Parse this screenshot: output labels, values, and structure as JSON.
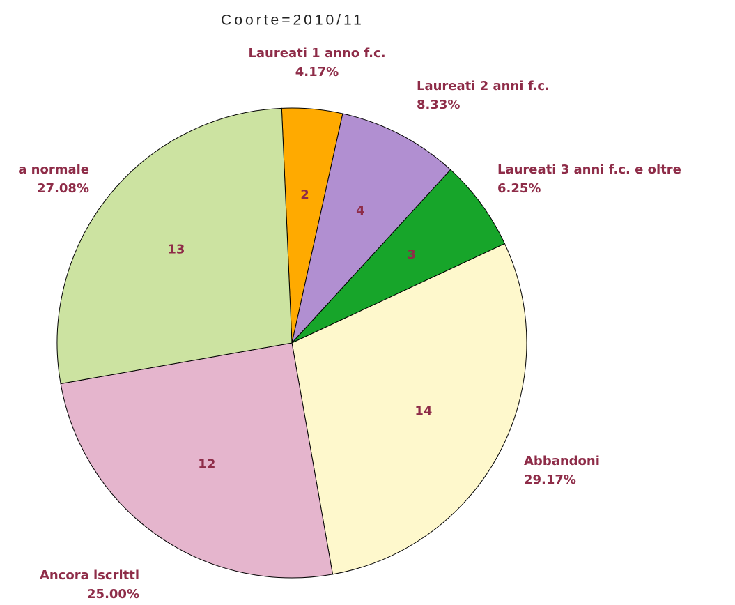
{
  "chart_data": {
    "type": "pie",
    "title": "Coorte=2010/11",
    "categories": [
      "Laureati 1 anno f.c.",
      "Laureati 2 anni f.c.",
      "Laureati 3 anni f.c. e oltre",
      "Abbandoni",
      "Ancora iscritti",
      "a normale"
    ],
    "values": [
      2,
      4,
      3,
      14,
      12,
      13
    ],
    "percentages": [
      4.17,
      8.33,
      6.25,
      29.17,
      25.0,
      27.08
    ],
    "percentage_labels": [
      "4.17%",
      "8.33%",
      "6.25%",
      "29.17%",
      "25.00%",
      "27.08%"
    ],
    "colors": [
      "#ffaa00",
      "#b18fd1",
      "#17a52a",
      "#fef8cc",
      "#e5b5cd",
      "#cce3a1"
    ]
  }
}
